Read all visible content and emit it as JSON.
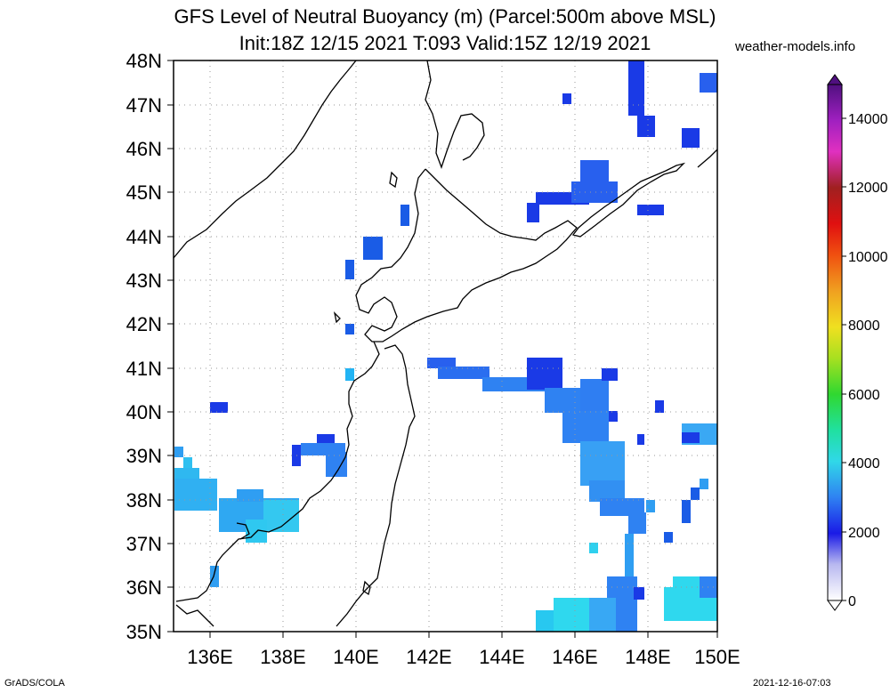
{
  "title_line1": "GFS Level of Neutral Buoyancy (m) (Parcel:500m above MSL)",
  "title_line2": "Init:18Z 12/15 2021 T:093 Valid:15Z 12/19 2021",
  "credit": "weather-models.info",
  "footer_left": "GrADS/COLA",
  "footer_right": "2021-12-16-07:03",
  "lat_labels": [
    "48N",
    "47N",
    "46N",
    "45N",
    "44N",
    "43N",
    "42N",
    "41N",
    "40N",
    "39N",
    "38N",
    "37N",
    "36N",
    "35N"
  ],
  "lon_labels": [
    "136E",
    "138E",
    "140E",
    "142E",
    "144E",
    "146E",
    "148E",
    "150E"
  ],
  "colorbar_labels": [
    "14000",
    "12000",
    "10000",
    "8000",
    "6000",
    "4000",
    "2000",
    "0"
  ]
}
